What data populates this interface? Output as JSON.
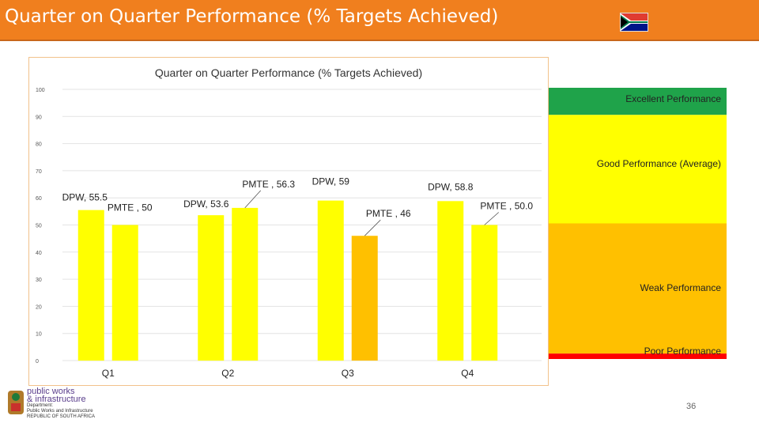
{
  "banner": {
    "title": "Quarter on Quarter Performance (% Targets Achieved)"
  },
  "footer": {
    "org_line1": "public works",
    "org_line2": "& infrastructure",
    "org_sub1": "Department:",
    "org_sub2": "Public Works and Infrastructure",
    "org_sub3": "REPUBLIC OF SOUTH AFRICA",
    "page_number": "36"
  },
  "colors": {
    "banner": "#f07f1e",
    "band_excellent": "#1fa34a",
    "band_good": "#ffff00",
    "band_weak": "#ffc000",
    "band_poor": "#ff0000",
    "bar_yellow": "#ffff00",
    "bar_orange": "#ffc000"
  },
  "chart_data": {
    "type": "bar",
    "title": "Quarter on Quarter Performance (% Targets Achieved)",
    "categories": [
      "Q1",
      "Q2",
      "Q3",
      "Q4"
    ],
    "series": [
      {
        "name": "DPW",
        "values": [
          55.5,
          53.6,
          59,
          58.8
        ],
        "labels": [
          "DPW, 55.5",
          "DPW, 53.6",
          "DPW, 59",
          "DPW, 58.8"
        ]
      },
      {
        "name": "PMTE",
        "values": [
          50,
          56.3,
          46,
          50.0
        ],
        "labels": [
          "PMTE , 50",
          "PMTE , 56.3",
          "PMTE , 46",
          "PMTE , 50.0"
        ]
      }
    ],
    "ylim": [
      0,
      100
    ],
    "yticks": [
      0,
      10,
      20,
      30,
      40,
      50,
      60,
      70,
      80,
      90,
      100
    ],
    "grid": true,
    "performance_bands": [
      {
        "label": "Excellent Performance",
        "from": 90,
        "to": 100,
        "color": "#1fa34a"
      },
      {
        "label": "Good Performance (Average)",
        "from": 50,
        "to": 90,
        "color": "#ffff00"
      },
      {
        "label": "Weak Performance",
        "from": 2,
        "to": 50,
        "color": "#ffc000"
      },
      {
        "label": "Poor Performance",
        "from": 0,
        "to": 2,
        "color": "#ff0000"
      }
    ]
  }
}
